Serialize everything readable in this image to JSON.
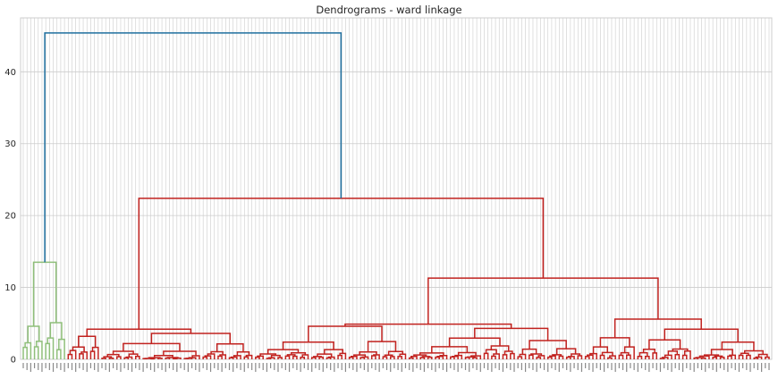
{
  "chart_data": {
    "type": "dendrogram",
    "title": "Dendrograms - ward linkage",
    "xlabel": "",
    "ylabel": "",
    "ylim": [
      0,
      47.5
    ],
    "yticks": [
      0,
      10,
      20,
      30,
      40
    ],
    "grid": true,
    "leaf_count": 200,
    "colors": {
      "root": "#1f6f9f",
      "cluster_green": "#8fbf7a",
      "cluster_red": "#c1221f",
      "grid": "#cccccc",
      "axes_border": "#cccccc"
    },
    "merges": [
      {
        "name": "root",
        "height": 45.4,
        "children": [
          "green-cluster",
          "red-cluster"
        ]
      },
      {
        "name": "red-cluster",
        "height": 22.4,
        "children": [
          "red-left",
          "red-right"
        ]
      },
      {
        "name": "red-right",
        "height": 11.3,
        "children": [
          "red-right-a",
          "red-right-b"
        ]
      },
      {
        "name": "green-cluster",
        "height": 13.5,
        "children": [
          "green-a",
          "green-b"
        ]
      },
      {
        "name": "red-right-b",
        "height": 5.6
      },
      {
        "name": "red-right-a",
        "height": 4.9
      },
      {
        "name": "red-left",
        "height": 4.2
      }
    ]
  }
}
